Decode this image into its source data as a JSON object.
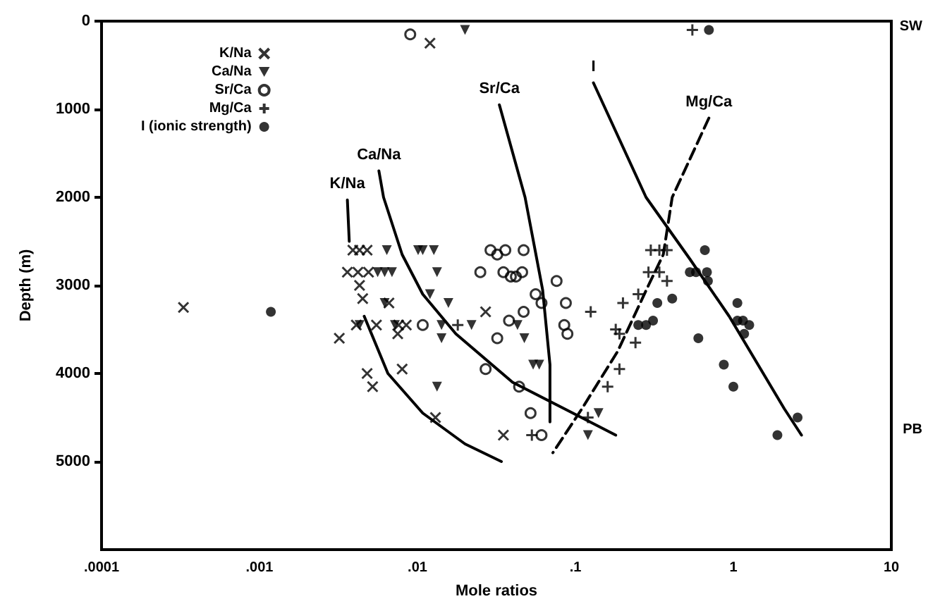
{
  "chart_data": {
    "type": "scatter",
    "xlabel": "Mole ratios",
    "ylabel": "Depth (m)",
    "log": "x",
    "grid": false,
    "legend": "top left",
    "xlim": [
      0.0001,
      10
    ],
    "xticks": [
      {
        "value": 0.0001,
        "label": ".0001"
      },
      {
        "value": 0.001,
        "label": ".001"
      },
      {
        "value": 0.01,
        "label": ".01"
      },
      {
        "value": 0.1,
        "label": ".1"
      },
      1,
      10
    ],
    "ylim": [
      6000,
      0
    ],
    "yticks": [
      0,
      1000,
      2000,
      3000,
      4000,
      5000
    ],
    "series": [
      {
        "name": "K/Na",
        "marker": "x",
        "color": "#000000",
        "x": [
          0.012,
          0.0039,
          0.0043,
          0.0048,
          0.0036,
          0.0042,
          0.0049,
          0.0043,
          0.0045,
          0.0066,
          0.0041,
          0.0055,
          0.0076,
          0.0085,
          0.0075,
          0.0032,
          0.0048,
          0.0052,
          0.008,
          0.027,
          0.013,
          0.035,
          0.00033
        ],
        "values": [
          250,
          2600,
          2600,
          2600,
          2850,
          2850,
          2850,
          3000,
          3150,
          3200,
          3450,
          3450,
          3450,
          3450,
          3550,
          3600,
          4000,
          4150,
          3950,
          3300,
          4500,
          4700,
          3250
        ]
      },
      {
        "name": "Ca/Na",
        "marker": "triangle",
        "color": "#000000",
        "x": [
          0.02,
          0.0064,
          0.0101,
          0.0108,
          0.0127,
          0.0056,
          0.0062,
          0.0069,
          0.0133,
          0.012,
          0.0157,
          0.0062,
          0.0043,
          0.0072,
          0.0142,
          0.0142,
          0.022,
          0.0475,
          0.043,
          0.0133,
          0.12,
          0.14,
          0.054,
          0.059
        ],
        "values": [
          100,
          2600,
          2600,
          2600,
          2600,
          2850,
          2850,
          2850,
          2850,
          3100,
          3200,
          3200,
          3450,
          3450,
          3450,
          3600,
          3450,
          3600,
          3450,
          4150,
          4700,
          4450,
          3900,
          3900
        ]
      },
      {
        "name": "Sr/Ca",
        "marker": "circle_open",
        "color": "#000000",
        "x": [
          0.009,
          0.029,
          0.032,
          0.036,
          0.047,
          0.025,
          0.035,
          0.039,
          0.042,
          0.046,
          0.076,
          0.056,
          0.061,
          0.087,
          0.047,
          0.0108,
          0.038,
          0.085,
          0.089,
          0.032,
          0.027,
          0.044,
          0.052,
          0.061
        ],
        "values": [
          150,
          2600,
          2650,
          2600,
          2600,
          2850,
          2850,
          2900,
          2900,
          2850,
          2950,
          3100,
          3200,
          3200,
          3300,
          3450,
          3400,
          3450,
          3550,
          3600,
          3950,
          4150,
          4450,
          4700
        ]
      },
      {
        "name": "Mg/Ca",
        "marker": "cross",
        "color": "#000000",
        "x": [
          0.55,
          0.018,
          0.125,
          0.053,
          0.3,
          0.34,
          0.38,
          0.29,
          0.34,
          0.38,
          0.2,
          0.25,
          0.18,
          0.19,
          0.24,
          0.19,
          0.16,
          0.12
        ],
        "values": [
          100,
          3450,
          3300,
          4700,
          2600,
          2600,
          2600,
          2850,
          2850,
          2950,
          3200,
          3100,
          3500,
          3550,
          3650,
          3950,
          4150,
          4500
        ]
      },
      {
        "name": "I (ionic strength)",
        "marker": "circle",
        "color": "#000000",
        "x": [
          0.7,
          0.66,
          0.53,
          0.58,
          0.68,
          0.69,
          0.41,
          0.33,
          0.31,
          0.25,
          0.28,
          1.06,
          1.06,
          1.15,
          1.26,
          1.17,
          0.6,
          0.87,
          1.0,
          2.55,
          1.9,
          0.00118
        ],
        "values": [
          100,
          2600,
          2850,
          2850,
          2850,
          2950,
          3150,
          3200,
          3400,
          3450,
          3450,
          3200,
          3400,
          3400,
          3450,
          3550,
          3600,
          3900,
          4150,
          4500,
          4700,
          3300
        ]
      },
      {
        "name": "K/Na",
        "type": "line",
        "marker": "none",
        "line_style": "solid",
        "color": "#000000",
        "x": [
          0.0036,
          0.0037
        ],
        "values": [
          2030,
          2500
        ]
      },
      {
        "type": "line",
        "marker": "none",
        "line_style": "solid",
        "color": "#000000",
        "x": [
          0.0046,
          0.0065,
          0.0108,
          0.02,
          0.034
        ],
        "values": [
          3350,
          4000,
          4450,
          4800,
          5000
        ]
      },
      {
        "name": "Ca/Na",
        "type": "line",
        "marker": "none",
        "line_style": "solid",
        "color": "#000000",
        "x": [
          0.0057,
          0.0061,
          0.008,
          0.0108,
          0.0175,
          0.04,
          0.085,
          0.18
        ],
        "values": [
          1700,
          2000,
          2650,
          3100,
          3550,
          4100,
          4400,
          4700
        ]
      },
      {
        "name": "Sr/Ca",
        "type": "line",
        "marker": "none",
        "line_style": "solid",
        "color": "#000000",
        "x": [
          0.033,
          0.048,
          0.062,
          0.069,
          0.069
        ],
        "values": [
          950,
          2000,
          3050,
          3900,
          4550
        ]
      },
      {
        "name": "Mg/Ca",
        "type": "line",
        "marker": "none",
        "line_style": "dashed",
        "color": "#000000",
        "x": [
          0.7,
          0.41,
          0.36,
          0.29,
          0.185,
          0.11,
          0.072
        ],
        "values": [
          1100,
          2000,
          2650,
          3000,
          3750,
          4400,
          4900
        ]
      },
      {
        "name": "I",
        "type": "line",
        "marker": "none",
        "line_style": "solid",
        "color": "#000000",
        "x": [
          0.13,
          0.28,
          0.53,
          0.94,
          2.1,
          2.7
        ],
        "values": [
          700,
          2000,
          2700,
          3350,
          4400,
          4700
        ]
      }
    ],
    "annotations": [
      "SW",
      "PB"
    ]
  }
}
